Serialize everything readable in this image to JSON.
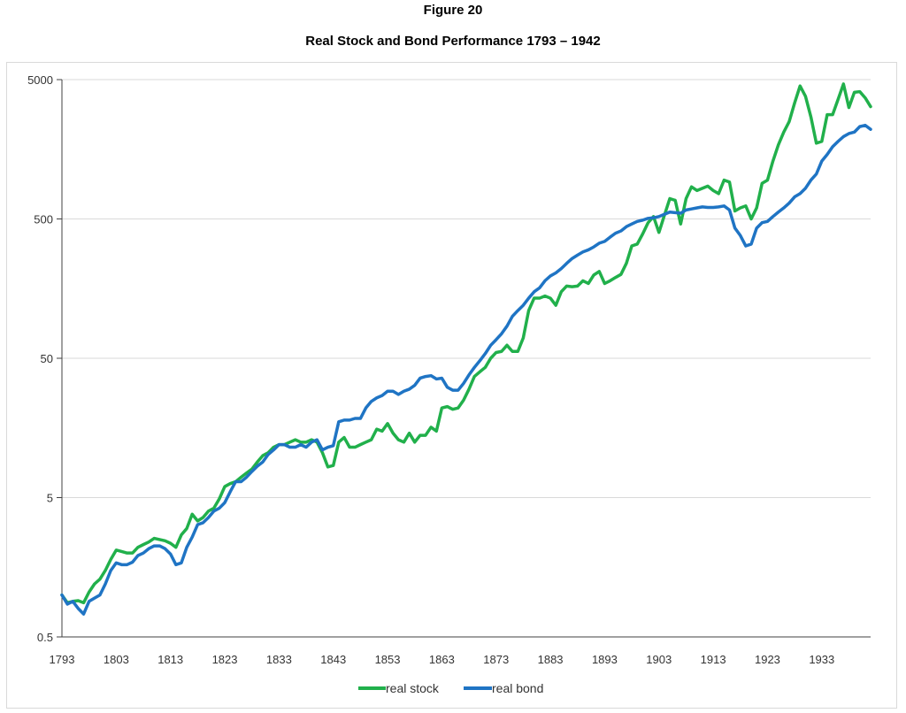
{
  "figure_label": "Figure 20",
  "colors": {
    "stock": "#21b04b",
    "bond": "#1f74c4",
    "grid": "#d9d9d9",
    "axis": "#404040"
  },
  "chart_data": {
    "type": "line",
    "title": "Real Stock and Bond Performance 1793 – 1942",
    "xlabel": "",
    "ylabel": "",
    "y_scale": "log",
    "ylim": [
      0.5,
      5000
    ],
    "xlim": [
      1793,
      1942
    ],
    "yticks": [
      0.5,
      5,
      50,
      500,
      5000
    ],
    "ytick_labels": [
      "0.5",
      "5",
      "50",
      "500",
      "5000"
    ],
    "xticks": [
      1793,
      1803,
      1813,
      1823,
      1833,
      1843,
      1853,
      1863,
      1873,
      1883,
      1893,
      1903,
      1913,
      1923,
      1933
    ],
    "xtick_labels": [
      "1793",
      "1803",
      "1813",
      "1823",
      "1833",
      "1843",
      "1853",
      "1863",
      "1873",
      "1883",
      "1893",
      "1903",
      "1913",
      "1923",
      "1933"
    ],
    "grid": "horizontal",
    "legend_position": "bottom",
    "series": [
      {
        "name": "real stock",
        "points": [
          [
            1793,
            1.0
          ],
          [
            1794,
            0.88
          ],
          [
            1795,
            0.9
          ],
          [
            1796,
            0.91
          ],
          [
            1797,
            0.88
          ],
          [
            1798,
            1.05
          ],
          [
            1799,
            1.2
          ],
          [
            1800,
            1.3
          ],
          [
            1801,
            1.5
          ],
          [
            1802,
            1.8
          ],
          [
            1803,
            2.1
          ],
          [
            1804,
            2.05
          ],
          [
            1805,
            2.0
          ],
          [
            1806,
            2.0
          ],
          [
            1807,
            2.2
          ],
          [
            1808,
            2.3
          ],
          [
            1809,
            2.4
          ],
          [
            1810,
            2.55
          ],
          [
            1811,
            2.5
          ],
          [
            1812,
            2.45
          ],
          [
            1813,
            2.35
          ],
          [
            1814,
            2.2
          ],
          [
            1815,
            2.7
          ],
          [
            1816,
            3.0
          ],
          [
            1817,
            3.8
          ],
          [
            1818,
            3.4
          ],
          [
            1819,
            3.6
          ],
          [
            1820,
            4.0
          ],
          [
            1821,
            4.2
          ],
          [
            1822,
            4.9
          ],
          [
            1823,
            6.0
          ],
          [
            1824,
            6.3
          ],
          [
            1825,
            6.5
          ],
          [
            1826,
            7.0
          ],
          [
            1827,
            7.5
          ],
          [
            1828,
            8.0
          ],
          [
            1829,
            9.0
          ],
          [
            1830,
            10.0
          ],
          [
            1831,
            10.5
          ],
          [
            1832,
            11.5
          ],
          [
            1833,
            12.0
          ],
          [
            1834,
            12.0
          ],
          [
            1835,
            12.5
          ],
          [
            1836,
            13.0
          ],
          [
            1837,
            12.5
          ],
          [
            1838,
            12.5
          ],
          [
            1839,
            13.0
          ],
          [
            1840,
            12.5
          ],
          [
            1841,
            10.5
          ],
          [
            1842,
            8.3
          ],
          [
            1843,
            8.5
          ],
          [
            1844,
            12.5
          ],
          [
            1845,
            13.5
          ],
          [
            1846,
            11.5
          ],
          [
            1847,
            11.5
          ],
          [
            1848,
            12.0
          ],
          [
            1849,
            12.5
          ],
          [
            1850,
            13.0
          ],
          [
            1851,
            15.5
          ],
          [
            1852,
            15.0
          ],
          [
            1853,
            17.0
          ],
          [
            1854,
            14.5
          ],
          [
            1855,
            13.0
          ],
          [
            1856,
            12.5
          ],
          [
            1857,
            14.5
          ],
          [
            1858,
            12.5
          ],
          [
            1859,
            14.0
          ],
          [
            1860,
            14.0
          ],
          [
            1861,
            16.0
          ],
          [
            1862,
            15.0
          ],
          [
            1863,
            22.0
          ],
          [
            1864,
            22.5
          ],
          [
            1865,
            21.5
          ],
          [
            1866,
            22.0
          ],
          [
            1867,
            25.0
          ],
          [
            1868,
            30.0
          ],
          [
            1869,
            37.0
          ],
          [
            1870,
            40.0
          ],
          [
            1871,
            43.0
          ],
          [
            1872,
            50.0
          ],
          [
            1873,
            55.0
          ],
          [
            1874,
            56.0
          ],
          [
            1875,
            62.0
          ],
          [
            1876,
            56.0
          ],
          [
            1877,
            56.0
          ],
          [
            1878,
            70.0
          ],
          [
            1879,
            110.0
          ],
          [
            1880,
            135.0
          ],
          [
            1881,
            135.0
          ],
          [
            1882,
            140.0
          ],
          [
            1883,
            135.0
          ],
          [
            1884,
            120.0
          ],
          [
            1885,
            150.0
          ],
          [
            1886,
            165.0
          ],
          [
            1887,
            163.0
          ],
          [
            1888,
            165.0
          ],
          [
            1889,
            180.0
          ],
          [
            1890,
            172.0
          ],
          [
            1891,
            198.0
          ],
          [
            1892,
            210.0
          ],
          [
            1893,
            172.0
          ],
          [
            1894,
            180.0
          ],
          [
            1895,
            190.0
          ],
          [
            1896,
            200.0
          ],
          [
            1897,
            240.0
          ],
          [
            1898,
            320.0
          ],
          [
            1899,
            330.0
          ],
          [
            1900,
            390.0
          ],
          [
            1901,
            470.0
          ],
          [
            1902,
            520.0
          ],
          [
            1903,
            400.0
          ],
          [
            1904,
            530.0
          ],
          [
            1905,
            700.0
          ],
          [
            1906,
            680.0
          ],
          [
            1907,
            460.0
          ],
          [
            1908,
            700.0
          ],
          [
            1909,
            850.0
          ],
          [
            1910,
            800.0
          ],
          [
            1911,
            830.0
          ],
          [
            1912,
            860.0
          ],
          [
            1913,
            800.0
          ],
          [
            1914,
            760.0
          ],
          [
            1915,
            950.0
          ],
          [
            1916,
            920.0
          ],
          [
            1917,
            570.0
          ],
          [
            1918,
            600.0
          ],
          [
            1919,
            620.0
          ],
          [
            1920,
            500.0
          ],
          [
            1921,
            600.0
          ],
          [
            1922,
            900.0
          ],
          [
            1923,
            950.0
          ],
          [
            1924,
            1300.0
          ],
          [
            1925,
            1700.0
          ],
          [
            1926,
            2100.0
          ],
          [
            1927,
            2500.0
          ],
          [
            1928,
            3400.0
          ],
          [
            1929,
            4500.0
          ],
          [
            1930,
            3800.0
          ],
          [
            1931,
            2700.0
          ],
          [
            1932,
            1750.0
          ],
          [
            1933,
            1800.0
          ],
          [
            1934,
            2800.0
          ],
          [
            1935,
            2800.0
          ],
          [
            1936,
            3600.0
          ],
          [
            1937,
            4650.0
          ],
          [
            1938,
            3150.0
          ],
          [
            1939,
            4050.0
          ],
          [
            1940,
            4100.0
          ],
          [
            1941,
            3700.0
          ],
          [
            1942,
            3200.0
          ]
        ]
      },
      {
        "name": "real bond",
        "points": [
          [
            1793,
            1.0
          ],
          [
            1794,
            0.86
          ],
          [
            1795,
            0.9
          ],
          [
            1796,
            0.8
          ],
          [
            1797,
            0.73
          ],
          [
            1798,
            0.9
          ],
          [
            1799,
            0.95
          ],
          [
            1800,
            1.0
          ],
          [
            1801,
            1.2
          ],
          [
            1802,
            1.5
          ],
          [
            1803,
            1.7
          ],
          [
            1804,
            1.65
          ],
          [
            1805,
            1.65
          ],
          [
            1806,
            1.72
          ],
          [
            1807,
            1.92
          ],
          [
            1808,
            2.0
          ],
          [
            1809,
            2.15
          ],
          [
            1810,
            2.25
          ],
          [
            1811,
            2.25
          ],
          [
            1812,
            2.15
          ],
          [
            1813,
            1.97
          ],
          [
            1814,
            1.65
          ],
          [
            1815,
            1.7
          ],
          [
            1816,
            2.2
          ],
          [
            1817,
            2.6
          ],
          [
            1818,
            3.2
          ],
          [
            1819,
            3.3
          ],
          [
            1820,
            3.6
          ],
          [
            1821,
            4.0
          ],
          [
            1822,
            4.2
          ],
          [
            1823,
            4.6
          ],
          [
            1824,
            5.5
          ],
          [
            1825,
            6.5
          ],
          [
            1826,
            6.5
          ],
          [
            1827,
            7.0
          ],
          [
            1828,
            7.7
          ],
          [
            1829,
            8.4
          ],
          [
            1830,
            9.0
          ],
          [
            1831,
            10.2
          ],
          [
            1832,
            11.0
          ],
          [
            1833,
            12.0
          ],
          [
            1834,
            12.0
          ],
          [
            1835,
            11.5
          ],
          [
            1836,
            11.5
          ],
          [
            1837,
            12.0
          ],
          [
            1838,
            11.5
          ],
          [
            1839,
            12.5
          ],
          [
            1840,
            13.0
          ],
          [
            1841,
            11.0
          ],
          [
            1842,
            11.5
          ],
          [
            1843,
            11.8
          ],
          [
            1844,
            17.5
          ],
          [
            1845,
            18.0
          ],
          [
            1846,
            18.0
          ],
          [
            1847,
            18.5
          ],
          [
            1848,
            18.5
          ],
          [
            1849,
            22.0
          ],
          [
            1850,
            24.5
          ],
          [
            1851,
            26.0
          ],
          [
            1852,
            27.0
          ],
          [
            1853,
            29.0
          ],
          [
            1854,
            29.0
          ],
          [
            1855,
            27.5
          ],
          [
            1856,
            29.0
          ],
          [
            1857,
            30.0
          ],
          [
            1858,
            32.0
          ],
          [
            1859,
            36.0
          ],
          [
            1860,
            37.0
          ],
          [
            1861,
            37.5
          ],
          [
            1862,
            35.5
          ],
          [
            1863,
            36.0
          ],
          [
            1864,
            31.0
          ],
          [
            1865,
            29.5
          ],
          [
            1866,
            29.5
          ],
          [
            1867,
            33.0
          ],
          [
            1868,
            38.0
          ],
          [
            1869,
            43.0
          ],
          [
            1870,
            48.0
          ],
          [
            1871,
            54.0
          ],
          [
            1872,
            62.0
          ],
          [
            1873,
            68.0
          ],
          [
            1874,
            75.0
          ],
          [
            1875,
            85.0
          ],
          [
            1876,
            100.0
          ],
          [
            1877,
            110.0
          ],
          [
            1878,
            120.0
          ],
          [
            1879,
            135.0
          ],
          [
            1880,
            150.0
          ],
          [
            1881,
            160.0
          ],
          [
            1882,
            180.0
          ],
          [
            1883,
            195.0
          ],
          [
            1884,
            205.0
          ],
          [
            1885,
            220.0
          ],
          [
            1886,
            240.0
          ],
          [
            1887,
            260.0
          ],
          [
            1888,
            275.0
          ],
          [
            1889,
            290.0
          ],
          [
            1890,
            300.0
          ],
          [
            1891,
            315.0
          ],
          [
            1892,
            335.0
          ],
          [
            1893,
            345.0
          ],
          [
            1894,
            370.0
          ],
          [
            1895,
            395.0
          ],
          [
            1896,
            410.0
          ],
          [
            1897,
            440.0
          ],
          [
            1898,
            460.0
          ],
          [
            1899,
            480.0
          ],
          [
            1900,
            490.0
          ],
          [
            1901,
            505.0
          ],
          [
            1902,
            510.0
          ],
          [
            1903,
            520.0
          ],
          [
            1904,
            540.0
          ],
          [
            1905,
            560.0
          ],
          [
            1906,
            555.0
          ],
          [
            1907,
            550.0
          ],
          [
            1908,
            580.0
          ],
          [
            1909,
            590.0
          ],
          [
            1910,
            600.0
          ],
          [
            1911,
            610.0
          ],
          [
            1912,
            605.0
          ],
          [
            1913,
            605.0
          ],
          [
            1914,
            610.0
          ],
          [
            1915,
            620.0
          ],
          [
            1916,
            580.0
          ],
          [
            1917,
            430.0
          ],
          [
            1918,
            380.0
          ],
          [
            1919,
            320.0
          ],
          [
            1920,
            330.0
          ],
          [
            1921,
            430.0
          ],
          [
            1922,
            470.0
          ],
          [
            1923,
            480.0
          ],
          [
            1924,
            520.0
          ],
          [
            1925,
            560.0
          ],
          [
            1926,
            600.0
          ],
          [
            1927,
            650.0
          ],
          [
            1928,
            720.0
          ],
          [
            1929,
            760.0
          ],
          [
            1930,
            830.0
          ],
          [
            1931,
            950.0
          ],
          [
            1932,
            1050.0
          ],
          [
            1933,
            1300.0
          ],
          [
            1934,
            1450.0
          ],
          [
            1935,
            1650.0
          ],
          [
            1936,
            1800.0
          ],
          [
            1937,
            1950.0
          ],
          [
            1938,
            2050.0
          ],
          [
            1939,
            2100.0
          ],
          [
            1940,
            2300.0
          ],
          [
            1941,
            2350.0
          ],
          [
            1942,
            2200.0
          ]
        ]
      }
    ]
  }
}
